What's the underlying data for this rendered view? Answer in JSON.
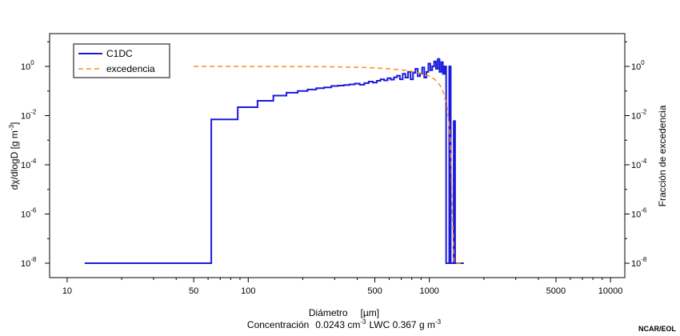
{
  "chart_data": {
    "type": "line",
    "x_scale": "log",
    "y_scale": "log",
    "xlim": [
      8,
      12000
    ],
    "ylim": [
      1e-08,
      10
    ],
    "x_ticks": [
      10,
      50,
      100,
      500,
      1000,
      5000,
      10000
    ],
    "x_tick_labels": [
      "10",
      "50",
      "100",
      "500",
      "1000",
      "5000",
      "10000"
    ],
    "y_ticks": [
      1e-08,
      1e-06,
      0.0001,
      0.01,
      1
    ],
    "y_tick_labels": [
      {
        "base": "10",
        "exp": "-8"
      },
      {
        "base": "10",
        "exp": "-6"
      },
      {
        "base": "10",
        "exp": "-4"
      },
      {
        "base": "10",
        "exp": "-2"
      },
      {
        "base": "10",
        "exp": "0"
      }
    ],
    "ylabel_left": {
      "pre": "dχ/dlogD [g m",
      "sup": "-3",
      "post": "]"
    },
    "ylabel_right": "Fracción de excedencia",
    "xlabel": {
      "left": "Diámetro",
      "right": "[µm]"
    },
    "subtitle": {
      "conc_label": "Concentración",
      "conc_value": "0.0243 cm",
      "conc_sup": "-3",
      "lwc": "LWC 0.367 g m",
      "lwc_sup": "-3"
    },
    "grid": false,
    "legend_position": "top-left",
    "series": [
      {
        "name": "C1DC",
        "color": "#1a1adb",
        "style": "step",
        "points": [
          [
            12.5,
            1e-08
          ],
          [
            62.5,
            1e-08
          ],
          [
            62.5,
            0.007
          ],
          [
            87.5,
            0.007
          ],
          [
            87.5,
            0.022
          ],
          [
            112.5,
            0.022
          ],
          [
            112.5,
            0.04
          ],
          [
            137.5,
            0.04
          ],
          [
            137.5,
            0.065
          ],
          [
            162.5,
            0.065
          ],
          [
            162.5,
            0.085
          ],
          [
            187.5,
            0.085
          ],
          [
            187.5,
            0.1
          ],
          [
            212.5,
            0.1
          ],
          [
            212.5,
            0.115
          ],
          [
            237.5,
            0.115
          ],
          [
            237.5,
            0.13
          ],
          [
            262.5,
            0.13
          ],
          [
            262.5,
            0.14
          ],
          [
            287.5,
            0.14
          ],
          [
            287.5,
            0.16
          ],
          [
            312.5,
            0.16
          ],
          [
            312.5,
            0.165
          ],
          [
            337.5,
            0.165
          ],
          [
            337.5,
            0.175
          ],
          [
            362.5,
            0.175
          ],
          [
            362.5,
            0.185
          ],
          [
            387.5,
            0.185
          ],
          [
            387.5,
            0.2
          ],
          [
            412.5,
            0.2
          ],
          [
            412.5,
            0.18
          ],
          [
            437.5,
            0.18
          ],
          [
            437.5,
            0.21
          ],
          [
            462.5,
            0.21
          ],
          [
            462.5,
            0.24
          ],
          [
            487.5,
            0.24
          ],
          [
            487.5,
            0.22
          ],
          [
            512.5,
            0.22
          ],
          [
            512.5,
            0.26
          ],
          [
            537.5,
            0.26
          ],
          [
            537.5,
            0.3
          ],
          [
            562.5,
            0.3
          ],
          [
            562.5,
            0.27
          ],
          [
            587.5,
            0.27
          ],
          [
            587.5,
            0.33
          ],
          [
            612.5,
            0.33
          ],
          [
            612.5,
            0.29
          ],
          [
            637.5,
            0.29
          ],
          [
            637.5,
            0.36
          ],
          [
            662.5,
            0.36
          ],
          [
            662.5,
            0.42
          ],
          [
            687.5,
            0.42
          ],
          [
            687.5,
            0.3
          ],
          [
            712.5,
            0.3
          ],
          [
            712.5,
            0.5
          ],
          [
            737.5,
            0.5
          ],
          [
            737.5,
            0.35
          ],
          [
            762.5,
            0.35
          ],
          [
            762.5,
            0.6
          ],
          [
            787.5,
            0.6
          ],
          [
            787.5,
            0.3
          ],
          [
            812.5,
            0.3
          ],
          [
            812.5,
            0.55
          ],
          [
            837.5,
            0.55
          ],
          [
            837.5,
            0.8
          ],
          [
            862.5,
            0.8
          ],
          [
            862.5,
            0.4
          ],
          [
            887.5,
            0.4
          ],
          [
            887.5,
            0.5
          ],
          [
            912.5,
            0.5
          ],
          [
            912.5,
            0.9
          ],
          [
            937.5,
            0.9
          ],
          [
            937.5,
            0.35
          ],
          [
            962.5,
            0.35
          ],
          [
            962.5,
            0.6
          ],
          [
            987.5,
            0.6
          ],
          [
            987.5,
            1.3
          ],
          [
            1012.5,
            1.3
          ],
          [
            1012.5,
            0.7
          ],
          [
            1037.5,
            0.7
          ],
          [
            1037.5,
            1.0
          ],
          [
            1062.5,
            1.0
          ],
          [
            1062.5,
            1.6
          ],
          [
            1087.5,
            1.6
          ],
          [
            1087.5,
            0.8
          ],
          [
            1112.5,
            0.8
          ],
          [
            1112.5,
            2.0
          ],
          [
            1137.5,
            2.0
          ],
          [
            1137.5,
            0.6
          ],
          [
            1162.5,
            0.6
          ],
          [
            1162.5,
            1.5
          ],
          [
            1187.5,
            1.5
          ],
          [
            1187.5,
            0.5
          ],
          [
            1212.5,
            0.5
          ],
          [
            1212.5,
            1.0
          ],
          [
            1237.5,
            1.0
          ],
          [
            1237.5,
            1e-08
          ],
          [
            1287.5,
            1e-08
          ],
          [
            1287.5,
            1.0
          ],
          [
            1312.5,
            1.0
          ],
          [
            1312.5,
            1e-08
          ],
          [
            1362.5,
            1e-08
          ],
          [
            1362.5,
            0.006
          ],
          [
            1387.5,
            0.006
          ],
          [
            1387.5,
            1e-08
          ],
          [
            1550,
            1e-08
          ]
        ]
      },
      {
        "name": "excedencia",
        "color": "#ff8c1a",
        "style": "dashed",
        "points": [
          [
            50,
            1.0
          ],
          [
            100,
            0.995
          ],
          [
            200,
            0.98
          ],
          [
            300,
            0.96
          ],
          [
            400,
            0.92
          ],
          [
            500,
            0.87
          ],
          [
            600,
            0.8
          ],
          [
            700,
            0.72
          ],
          [
            800,
            0.63
          ],
          [
            900,
            0.52
          ],
          [
            1000,
            0.4
          ],
          [
            1050,
            0.33
          ],
          [
            1100,
            0.25
          ],
          [
            1150,
            0.16
          ],
          [
            1200,
            0.08
          ],
          [
            1250,
            0.025
          ],
          [
            1280,
            0.006
          ],
          [
            1300,
            0.0015
          ],
          [
            1320,
            0.0001
          ],
          [
            1340,
            1e-06
          ],
          [
            1370,
            1e-08
          ],
          [
            1550,
            1e-08
          ]
        ]
      }
    ]
  },
  "footer": {
    "credit": "NCAR/EOL"
  }
}
